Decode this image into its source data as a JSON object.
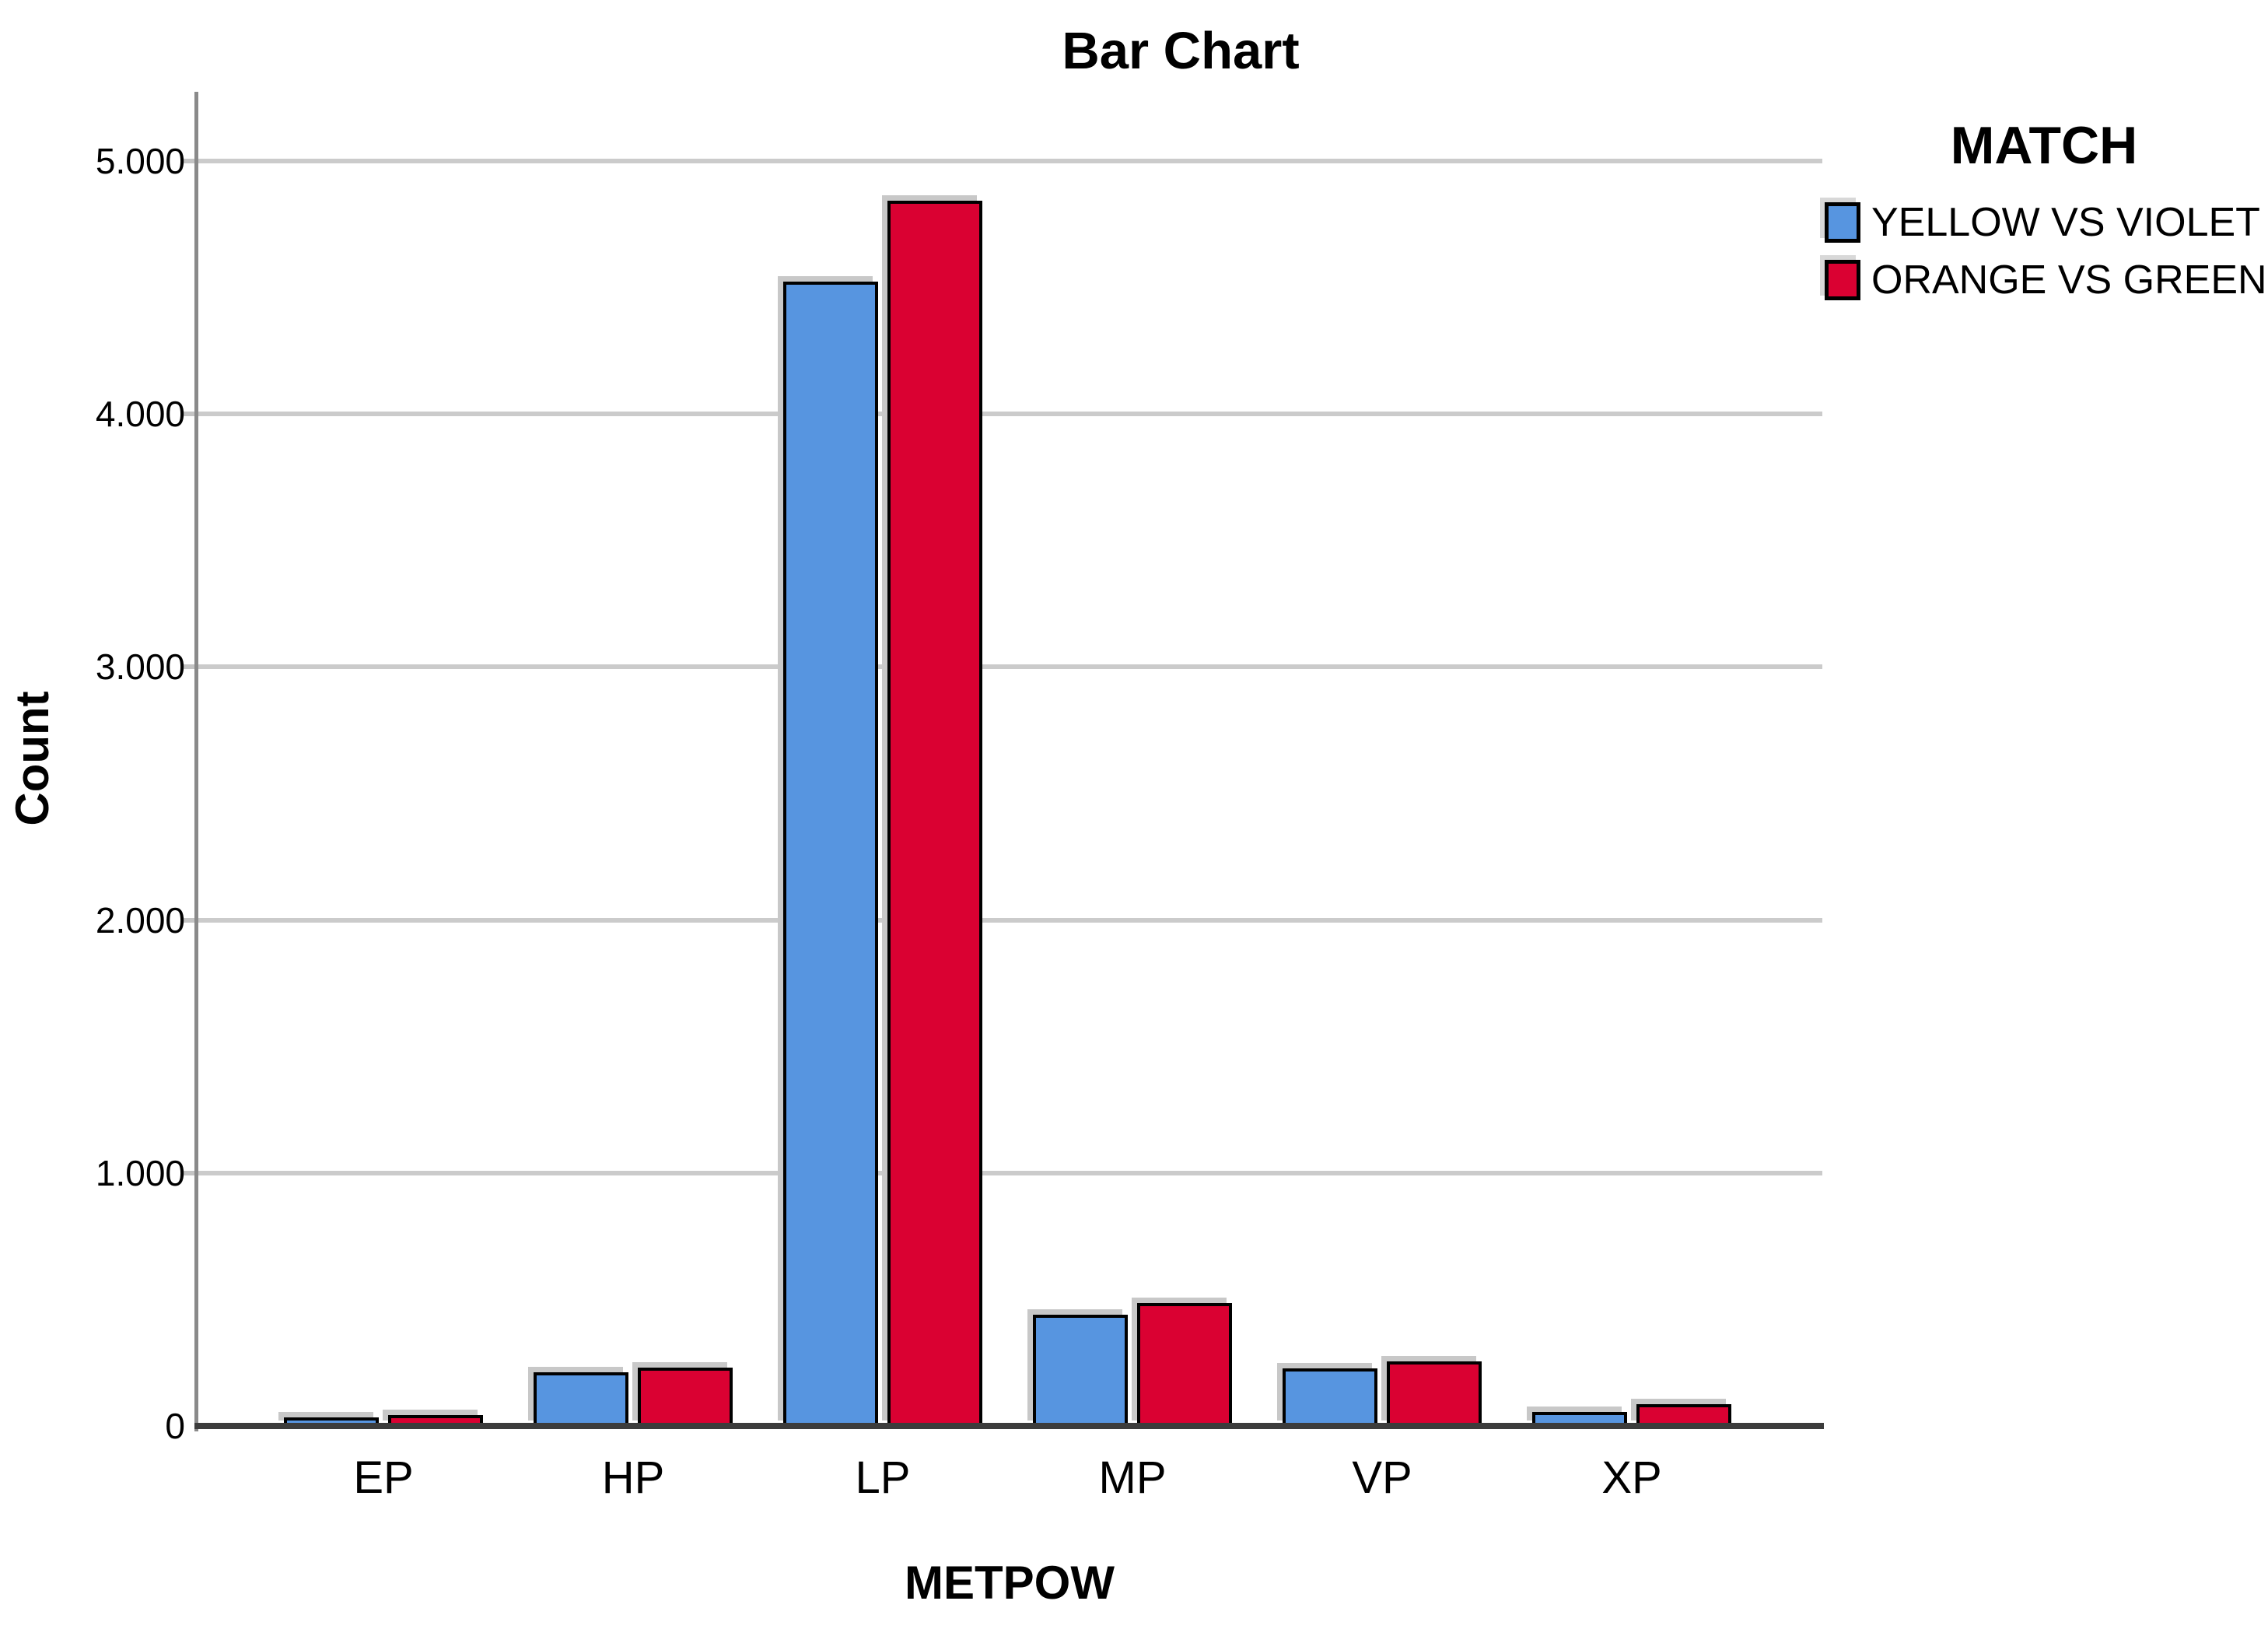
{
  "page": {
    "background": "#ffffff"
  },
  "chart_data": {
    "type": "bar",
    "title": "Bar Chart",
    "xlabel": "METPOW",
    "ylabel": "Count",
    "categories": [
      "EP",
      "HP",
      "LP",
      "MP",
      "VP",
      "XP"
    ],
    "series": [
      {
        "name": "YELLOW VS VIOLET",
        "color": "#5795E0",
        "values": [
          10,
          188,
          4500,
          415,
          204,
          31
        ]
      },
      {
        "name": "ORANGE VS GREEN",
        "color": "#DA0132",
        "values": [
          18,
          206,
          4820,
          460,
          230,
          61
        ]
      }
    ],
    "legend_title": "MATCH",
    "legend_position": "top-right",
    "grid": true,
    "ylim": [
      0,
      5264
    ],
    "yticks": [
      {
        "value": 0,
        "label": "0"
      },
      {
        "value": 1000,
        "label": "1.000"
      },
      {
        "value": 2000,
        "label": "2.000"
      },
      {
        "value": 3000,
        "label": "3.000"
      },
      {
        "value": 4000,
        "label": "4.000"
      },
      {
        "value": 5000,
        "label": "5.000"
      }
    ]
  }
}
